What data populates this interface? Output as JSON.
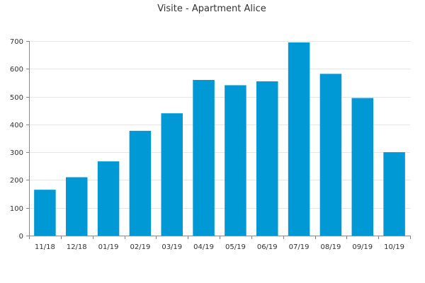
{
  "chart_data": {
    "type": "bar",
    "title": "Visite - Apartment Alice",
    "xlabel": "",
    "ylabel": "",
    "categories": [
      "11/18",
      "12/18",
      "01/19",
      "02/19",
      "03/19",
      "04/19",
      "05/19",
      "06/19",
      "07/19",
      "08/19",
      "09/19",
      "10/19"
    ],
    "values": [
      165,
      210,
      267,
      377,
      440,
      560,
      541,
      555,
      695,
      582,
      495,
      300
    ],
    "ylim": [
      0,
      700
    ],
    "yticks": [
      0,
      100,
      200,
      300,
      400,
      500,
      600,
      700
    ],
    "grid": true,
    "legend": "none",
    "colors": {
      "bar": "#0099d6"
    }
  }
}
